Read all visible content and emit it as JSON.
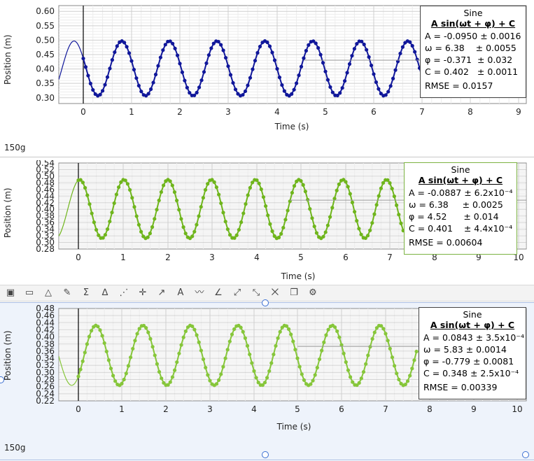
{
  "chart_data": [
    {
      "type": "scatter",
      "ylabel": "Position (m)",
      "xlabel": "Time (s)",
      "xlim": [
        -0.5,
        9
      ],
      "ylim": [
        0.28,
        0.62
      ],
      "xticks": [
        "0",
        "1",
        "2",
        "3",
        "4",
        "5",
        "6",
        "7",
        "8",
        "9"
      ],
      "yticks": [
        "0.30",
        "0.35",
        "0.40",
        "0.45",
        "0.50",
        "0.55",
        "0.60"
      ],
      "grid": true,
      "color": "#10179a",
      "data_range": [
        0,
        7
      ],
      "fit": {
        "A": -0.095,
        "omega": 6.38,
        "phi": -0.371,
        "C": 0.402
      },
      "fit_label": "Sine",
      "fit_equation": "A sin(ωt + φ) + C",
      "fit_rows": [
        {
          "name": "A",
          "value": "= -0.0950",
          "unc": "± 0.0016"
        },
        {
          "name": "ω",
          "value": "= 6.38",
          "unc": "± 0.0055"
        },
        {
          "name": "φ",
          "value": "= -0.371",
          "unc": "± 0.032"
        },
        {
          "name": "C",
          "value": "= 0.402",
          "unc": "± 0.0011"
        }
      ],
      "rmse": "RMSE = 0.0157",
      "mass_label": "150g"
    },
    {
      "type": "scatter",
      "ylabel": "Position (m)",
      "xlabel": "Time (s)",
      "xlim": [
        -0.4,
        10.2
      ],
      "ylim": [
        0.28,
        0.54
      ],
      "xticks": [
        "0",
        "1",
        "2",
        "3",
        "4",
        "5",
        "6",
        "7",
        "8",
        "9",
        "10"
      ],
      "yticks": [
        "0.28",
        "0.30",
        "0.32",
        "0.34",
        "0.36",
        "0.38",
        "0.40",
        "0.42",
        "0.44",
        "0.46",
        "0.48",
        "0.50",
        "0.52",
        "0.54"
      ],
      "grid": true,
      "color": "#6fb51c",
      "data_range": [
        0,
        7.3
      ],
      "fit": {
        "A": -0.0887,
        "omega": 6.38,
        "phi": 4.52,
        "C": 0.401
      },
      "fit_label": "Sine",
      "fit_equation": "A sin(ωt + φ) + C",
      "fit_rows": [
        {
          "name": "A",
          "value": "= -0.0887",
          "unc": "± 6.2x10⁻⁴"
        },
        {
          "name": "ω",
          "value": "= 6.38",
          "unc": "± 0.0025"
        },
        {
          "name": "φ",
          "value": "= 4.52",
          "unc": "± 0.014"
        },
        {
          "name": "C",
          "value": "= 0.401",
          "unc": "± 4.4x10⁻⁴"
        }
      ],
      "rmse": "RMSE = 0.00604"
    },
    {
      "type": "scatter",
      "ylabel": "Position (m)",
      "xlabel": "Time (s)",
      "xlim": [
        -0.4,
        10.2
      ],
      "ylim": [
        0.22,
        0.48
      ],
      "xticks": [
        "0",
        "1",
        "2",
        "3",
        "4",
        "5",
        "6",
        "7",
        "8",
        "9",
        "10"
      ],
      "yticks": [
        "0.22",
        "0.24",
        "0.26",
        "0.28",
        "0.30",
        "0.32",
        "0.34",
        "0.36",
        "0.38",
        "0.40",
        "0.42",
        "0.44",
        "0.46",
        "0.48"
      ],
      "grid": true,
      "color": "#86c63a",
      "data_range": [
        0,
        7.7
      ],
      "fit": {
        "A": 0.0843,
        "omega": 5.83,
        "phi": -0.779,
        "C": 0.348
      },
      "fit_label": "Sine",
      "fit_equation": "A sin(ωt + φ) + C",
      "fit_rows": [
        {
          "name": "A",
          "value": "= 0.0843",
          "unc": "± 3.5x10⁻⁴"
        },
        {
          "name": "ω",
          "value": "= 5.83",
          "unc": "± 0.0014"
        },
        {
          "name": "φ",
          "value": "= -0.779",
          "unc": "± 0.0081"
        },
        {
          "name": "C",
          "value": "= 0.348",
          "unc": "± 2.5x10⁻⁴"
        }
      ],
      "rmse": "RMSE = 0.00339",
      "mass_label": "150g"
    }
  ],
  "toolbar": {
    "icons": [
      "graph-options-icon",
      "graph-select-icon",
      "analyze-icon",
      "highlight-icon",
      "statistics-icon",
      "integral-icon",
      "curve-fit-icon",
      "interpolate-icon",
      "tangent-icon",
      "annotation-icon",
      "fft-icon",
      "slope-icon",
      "delete-icon",
      "duplicate-icon",
      "pin-icon",
      "settings-icon",
      "view-icon"
    ],
    "glyphs": [
      "▣",
      "▭",
      "△",
      "✎",
      "Σ",
      "∆",
      "⋰",
      "✛",
      "↗",
      "A",
      "〰",
      "∠",
      "⤢",
      "⤡",
      "⨉",
      "❐",
      "⚙"
    ]
  }
}
